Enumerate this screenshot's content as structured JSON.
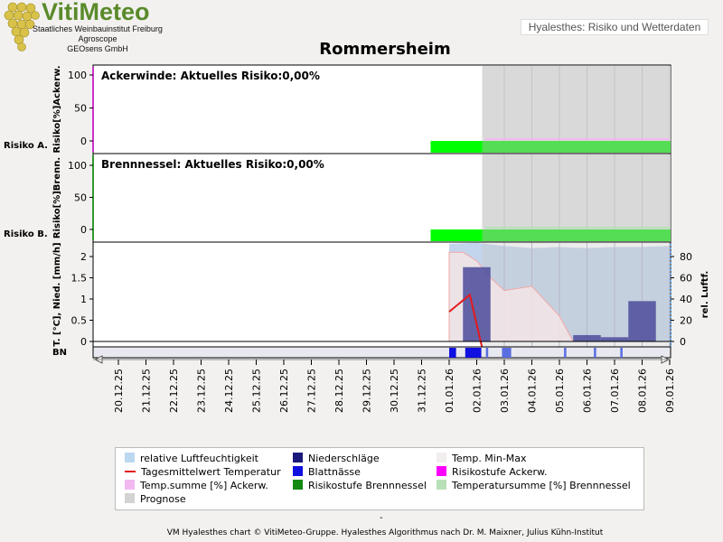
{
  "header": {
    "logo_title": "VitiMeteo",
    "logo_lines": [
      "Staatliches Weinbauinstitut Freiburg",
      "Agroscope",
      "GEOsens GmbH"
    ],
    "banner": "Hyalesthes: Risiko und Wetterdaten"
  },
  "footer": {
    "dash": "-",
    "credit": "VM Hyalesthes chart © VitiMeteo-Gruppe. Hyalesthes Algorithmus nach Dr. M. Maixner, Julius Kühn-Institut"
  },
  "legend": [
    {
      "label": "relative Luftfeuchtigkeit",
      "color": "#bcd7f0",
      "kind": "box"
    },
    {
      "label": "Niederschläge",
      "color": "#1a1a7a",
      "kind": "box"
    },
    {
      "label": "Temp. Min-Max",
      "color": "#f3eeee",
      "kind": "box"
    },
    {
      "label": "Tagesmittelwert Temperatur",
      "color": "#e31a1c",
      "kind": "line"
    },
    {
      "label": "Blattnässe",
      "color": "#1010e0",
      "kind": "box"
    },
    {
      "label": "Risikostufe Ackerw.",
      "color": "#ff00ff",
      "kind": "box"
    },
    {
      "label": "Temp.summe [%] Ackerw.",
      "color": "#f2b8f0",
      "kind": "box"
    },
    {
      "label": "Risikostufe Brennnessel",
      "color": "#138a13",
      "kind": "box"
    },
    {
      "label": "Temperatursumme [%] Brennnessel",
      "color": "#b8e0b8",
      "kind": "box"
    },
    {
      "label": "Prognose",
      "color": "#d3d3d3",
      "kind": "box"
    }
  ],
  "chart_data": {
    "title": "Rommersheim",
    "dates": [
      "20.12.25",
      "21.12.25",
      "22.12.25",
      "23.12.25",
      "24.12.25",
      "25.12.25",
      "26.12.25",
      "27.12.25",
      "28.12.25",
      "29.12.25",
      "30.12.25",
      "31.12.25",
      "01.01.26",
      "02.01.26",
      "03.01.26",
      "04.01.26",
      "05.01.26",
      "06.01.26",
      "07.01.26",
      "08.01.26",
      "09.01.26"
    ],
    "prognose_start": "02.01.26",
    "panels": [
      {
        "type": "area",
        "annotation": "Ackerwinde: Aktuelles Risiko:0,00%",
        "ylabel": "Risiko[%]Ackerw.",
        "risk_label": "Risiko A.",
        "ylim": [
          0,
          100
        ],
        "yticks": [
          0,
          50,
          100
        ],
        "temp_sum_percent": {
          "x": [
            "01.01.26",
            "09.01.26"
          ],
          "y": [
            0,
            0
          ]
        },
        "risk_level": {
          "start": "31.12.25",
          "end": "09.01.26",
          "level": 0
        }
      },
      {
        "type": "area",
        "annotation": "Brennnessel: Aktuelles Risiko:0,00%",
        "ylabel": "Risiko[%]Brenn.",
        "risk_label": "Risiko B.",
        "ylim": [
          0,
          100
        ],
        "yticks": [
          0,
          50,
          100
        ],
        "temp_sum_percent": {
          "x": [
            "01.01.26",
            "09.01.26"
          ],
          "y": [
            0,
            0
          ]
        },
        "risk_level": {
          "start": "31.12.25",
          "end": "09.01.26",
          "level": 0
        }
      },
      {
        "type": "bar",
        "ylabel_left": "T. [°C], Nied. [mm/h]",
        "ylabel_right": "rel. Luftf.",
        "bottom_label": "BN",
        "ylim": [
          0,
          2.2
        ],
        "yticks": [
          0,
          0.5,
          1,
          1.5,
          2
        ],
        "y2lim": [
          0,
          90
        ],
        "y2ticks": [
          0,
          20,
          40,
          60,
          80
        ],
        "humidity": {
          "x": [
            "01.01.26",
            "02.01.26",
            "03.01.26",
            "04.01.26",
            "05.01.26",
            "06.01.26",
            "07.01.26",
            "08.01.26",
            "09.01.26"
          ],
          "y": [
            92,
            93,
            90,
            88,
            89,
            88,
            89,
            89,
            90
          ]
        },
        "precipitation": [
          {
            "start": "01.01.26 12:00",
            "end": "02.01.26 12:00",
            "value": 1.75
          },
          {
            "start": "05.01.26 12:00",
            "end": "06.01.26 12:00",
            "value": 0.15
          },
          {
            "start": "06.01.26 12:00",
            "end": "07.01.26 12:00",
            "value": 0.1
          },
          {
            "start": "07.01.26 12:00",
            "end": "08.01.26 12:00",
            "value": 0.95
          }
        ],
        "temp_mean": {
          "x": [
            "01.01.26",
            "01.01.26 18:00",
            "02.01.26 12:00"
          ],
          "y": [
            0.7,
            1.1,
            -1.0
          ]
        },
        "temp_minmax": {
          "x": [
            "01.01.26",
            "01.01.26 12:00",
            "02.01.26",
            "02.01.26 12:00",
            "03.01.26",
            "04.01.26",
            "05.01.26",
            "05.01.26 12:00"
          ],
          "y_max": [
            2.1,
            2.1,
            1.9,
            1.5,
            1.2,
            1.3,
            0.6,
            0
          ],
          "y_min": [
            0,
            0,
            0,
            0,
            0,
            0,
            0,
            0
          ]
        },
        "leaf_wetness": [
          {
            "start": "01.01.26",
            "end": "01.01.26 06:00"
          },
          {
            "start": "01.01.26 14:00",
            "end": "02.01.26 04:00"
          },
          {
            "start": "02.01.26 08:00",
            "end": "02.01.26 10:00"
          },
          {
            "start": "02.01.26 22:00",
            "end": "03.01.26 06:00"
          },
          {
            "start": "05.01.26 04:00",
            "end": "05.01.26 06:00"
          },
          {
            "start": "06.01.26 06:00",
            "end": "06.01.26 08:00"
          },
          {
            "start": "07.01.26 05:00",
            "end": "07.01.26 07:00"
          }
        ]
      }
    ]
  }
}
